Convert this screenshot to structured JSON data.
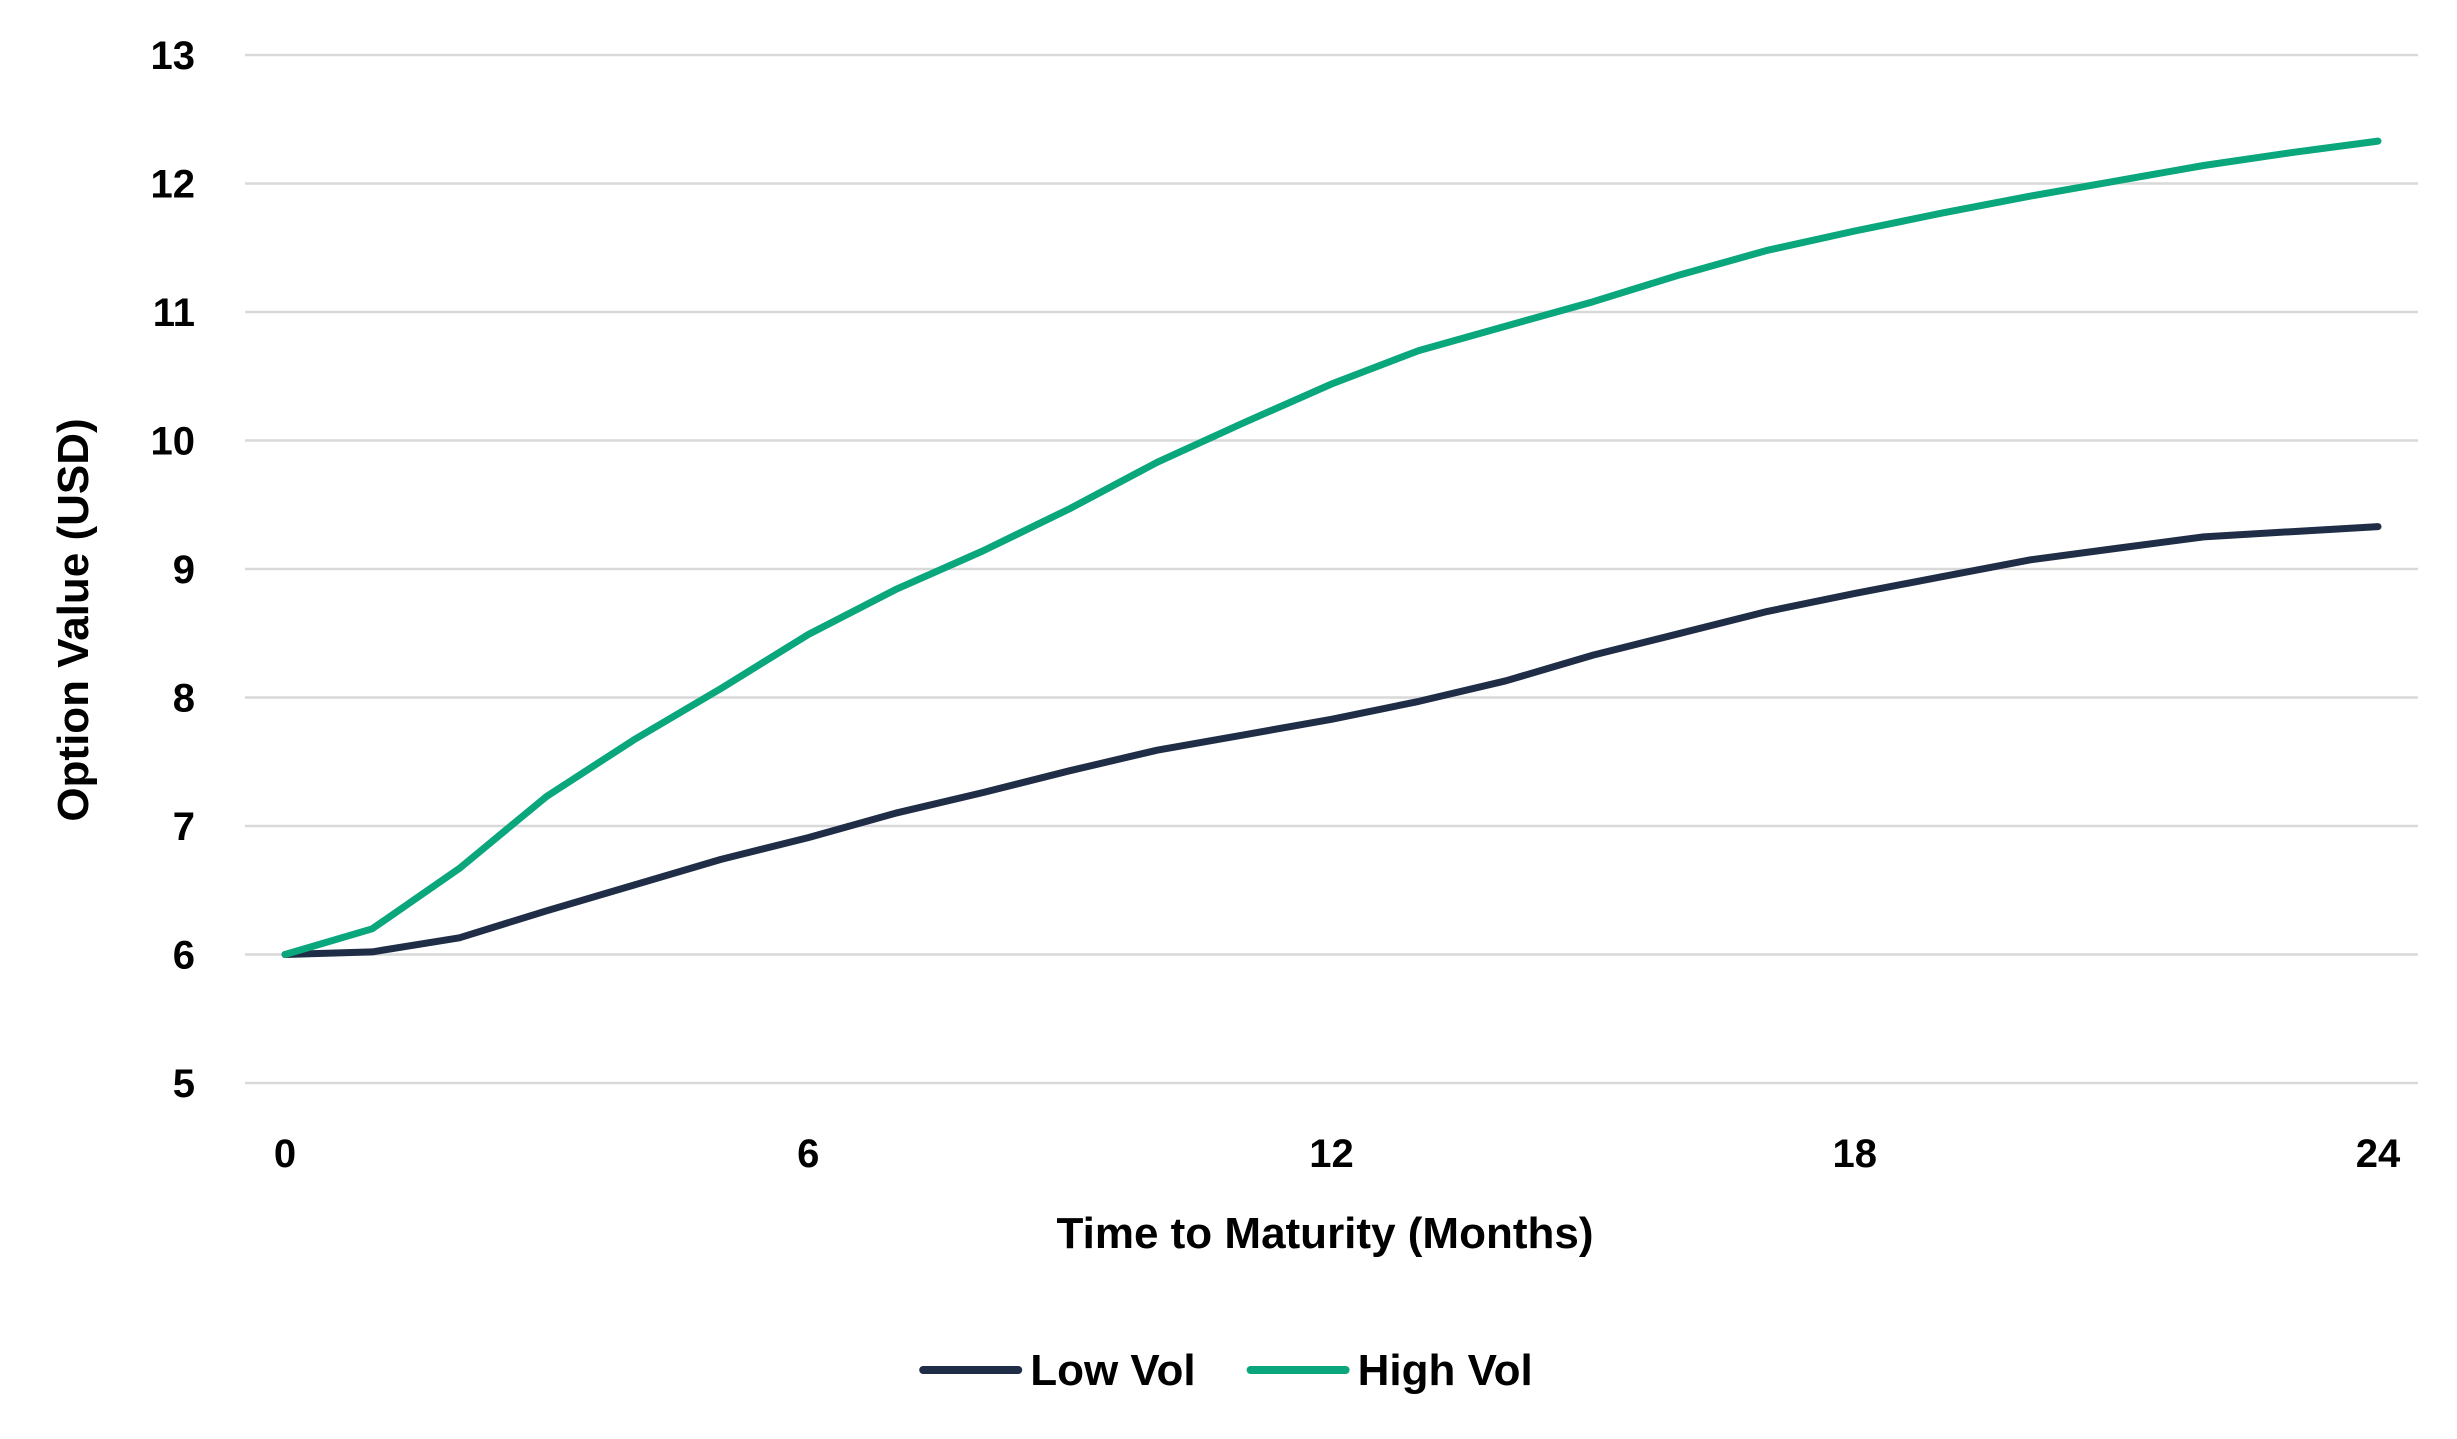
{
  "chart_data": {
    "type": "line",
    "title": "",
    "xlabel": "Time to Maturity (Months)",
    "ylabel": "Option Value (USD)",
    "xlim": [
      0,
      24
    ],
    "ylim": [
      5,
      13
    ],
    "x_ticks": [
      0,
      6,
      12,
      18,
      24
    ],
    "y_ticks": [
      5,
      6,
      7,
      8,
      9,
      10,
      11,
      12,
      13
    ],
    "grid": "horizontal",
    "legend_position": "bottom-center",
    "x": [
      0,
      1,
      2,
      3,
      4,
      5,
      6,
      7,
      8,
      9,
      10,
      11,
      12,
      13,
      14,
      15,
      16,
      17,
      18,
      19,
      20,
      21,
      22,
      23,
      24
    ],
    "series": [
      {
        "name": "Low Vol",
        "color": "#1f2d47",
        "values": [
          6.0,
          6.02,
          6.13,
          6.34,
          6.54,
          6.74,
          6.91,
          7.1,
          7.26,
          7.43,
          7.59,
          7.71,
          7.83,
          7.97,
          8.13,
          8.33,
          8.5,
          8.67,
          8.81,
          8.94,
          9.07,
          9.16,
          9.25,
          9.29,
          9.33
        ]
      },
      {
        "name": "High Vol",
        "color": "#0aa67c",
        "values": [
          6.0,
          6.2,
          6.67,
          7.23,
          7.67,
          8.07,
          8.49,
          8.84,
          9.14,
          9.47,
          9.83,
          10.14,
          10.44,
          10.7,
          10.89,
          11.08,
          11.29,
          11.48,
          11.63,
          11.77,
          11.9,
          12.02,
          12.14,
          12.24,
          12.33
        ]
      }
    ]
  }
}
